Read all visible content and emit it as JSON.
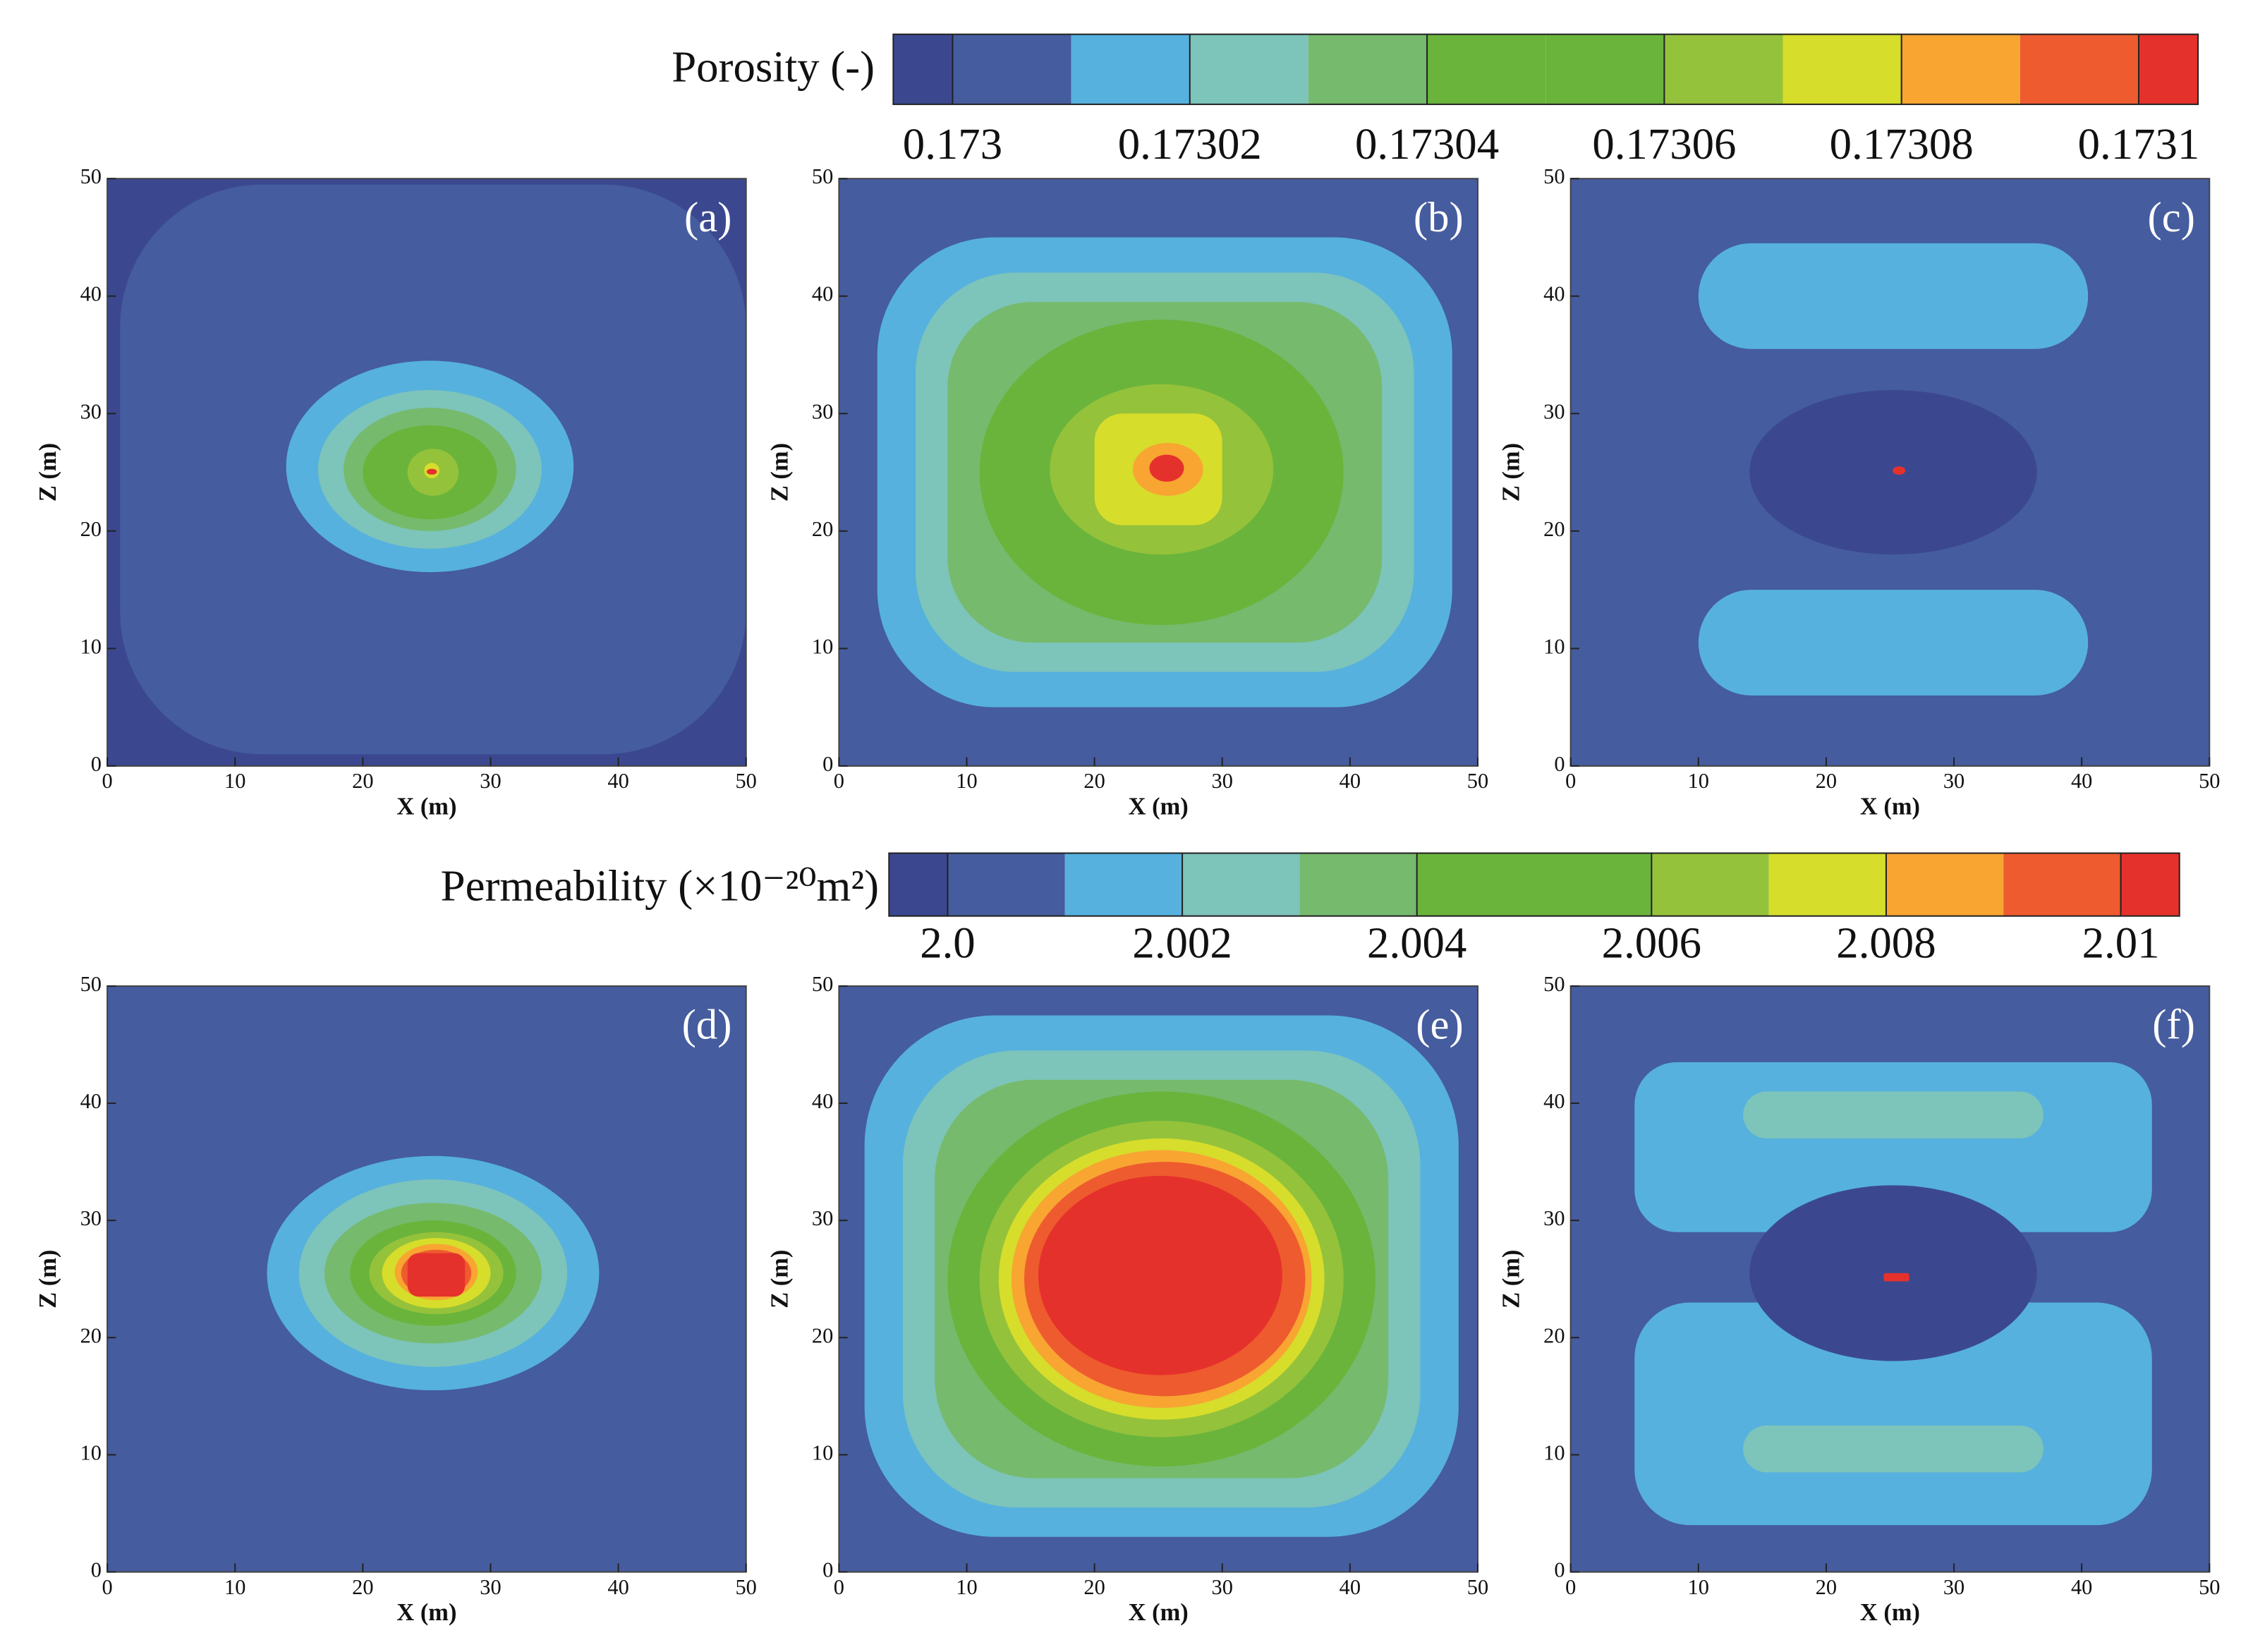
{
  "chart_data": [
    {
      "type": "contour",
      "title": "Porosity (-)",
      "lim": [
        0.172995,
        0.173105
      ],
      "levels": [
        0.173,
        0.17301,
        0.17302,
        0.17303,
        0.17304,
        0.17305,
        0.17306,
        0.17307,
        0.17308,
        0.17309,
        0.1731
      ],
      "colors": [
        "#3b4890",
        "#455c9e",
        "#56b1de",
        "#7dc4ba",
        "#76ba6d",
        "#6ab43c",
        "#6ab43c",
        "#95c23b",
        "#d6dd2b",
        "#f8a532",
        "#ee5b2e",
        "#e5312c"
      ],
      "ticks": [
        0.173,
        0.17302,
        0.17304,
        0.17306,
        0.17308,
        0.1731
      ],
      "panels": [
        {
          "label": "(a)",
          "xlabel": "X (m)",
          "ylabel": "Z (m)",
          "xlim": [
            0,
            50
          ],
          "ylim": [
            0,
            50
          ],
          "xticks": [
            0,
            10,
            20,
            30,
            40,
            50
          ],
          "yticks": [
            0,
            10,
            20,
            30,
            40,
            50
          ],
          "background": 0.172997,
          "regions": [
            {
              "value": 0.173005,
              "shape": "rounded",
              "x": [
                1,
                50
              ],
              "z": [
                1,
                49.5
              ]
            },
            {
              "value": 0.173015,
              "shape": "ellipse",
              "x": [
                14,
                36.5
              ],
              "z": [
                16.5,
                34.5
              ]
            },
            {
              "value": 0.173025,
              "shape": "ellipse",
              "x": [
                16.5,
                34
              ],
              "z": [
                18.5,
                32
              ]
            },
            {
              "value": 0.173035,
              "shape": "ellipse",
              "x": [
                18.5,
                32
              ],
              "z": [
                20,
                30.5
              ]
            },
            {
              "value": 0.173045,
              "shape": "ellipse",
              "x": [
                20,
                30.5
              ],
              "z": [
                21,
                29
              ]
            },
            {
              "value": 0.173065,
              "shape": "ellipse",
              "x": [
                23.5,
                27.5
              ],
              "z": [
                23,
                27
              ]
            },
            {
              "value": 0.173075,
              "shape": "ellipse",
              "x": [
                24.8,
                26
              ],
              "z": [
                24.5,
                25.8
              ]
            },
            {
              "value": 0.173102,
              "shape": "ellipse",
              "x": [
                25,
                25.8
              ],
              "z": [
                24.8,
                25.3
              ]
            }
          ]
        },
        {
          "label": "(b)",
          "xlabel": "X (m)",
          "ylabel": "Z (m)",
          "xlim": [
            0,
            50
          ],
          "ylim": [
            0,
            50
          ],
          "xticks": [
            0,
            10,
            20,
            30,
            40,
            50
          ],
          "yticks": [
            0,
            10,
            20,
            30,
            40,
            50
          ],
          "background": 0.173005,
          "regions": [
            {
              "value": 0.173015,
              "shape": "rounded",
              "x": [
                3,
                48
              ],
              "z": [
                5,
                45
              ]
            },
            {
              "value": 0.173025,
              "shape": "rounded",
              "x": [
                6,
                45
              ],
              "z": [
                8,
                42
              ]
            },
            {
              "value": 0.173035,
              "shape": "rounded",
              "x": [
                8.5,
                42.5
              ],
              "z": [
                10.5,
                39.5
              ]
            },
            {
              "value": 0.173045,
              "shape": "ellipse",
              "x": [
                11,
                39.5
              ],
              "z": [
                12,
                38
              ]
            },
            {
              "value": 0.173065,
              "shape": "ellipse",
              "x": [
                16.5,
                34
              ],
              "z": [
                18,
                32.5
              ]
            },
            {
              "value": 0.173075,
              "shape": "rounded",
              "x": [
                20,
                30
              ],
              "z": [
                20.5,
                30
              ]
            },
            {
              "value": 0.173085,
              "shape": "ellipse",
              "x": [
                23,
                28.5
              ],
              "z": [
                23,
                27.5
              ]
            },
            {
              "value": 0.173102,
              "shape": "ellipse",
              "x": [
                24.3,
                27
              ],
              "z": [
                24.2,
                26.5
              ]
            }
          ]
        },
        {
          "label": "(c)",
          "xlabel": "X (m)",
          "ylabel": "Z (m)",
          "xlim": [
            0,
            50
          ],
          "ylim": [
            0,
            50
          ],
          "xticks": [
            0,
            10,
            20,
            30,
            40,
            50
          ],
          "yticks": [
            0,
            10,
            20,
            30,
            40,
            50
          ],
          "background": 0.173005,
          "regions": [
            {
              "value": 0.173015,
              "shape": "band",
              "x": [
                10,
                40.5
              ],
              "z": [
                35.5,
                44.5
              ]
            },
            {
              "value": 0.173015,
              "shape": "band",
              "x": [
                10,
                40.5
              ],
              "z": [
                6,
                15
              ]
            },
            {
              "value": 0.172997,
              "shape": "ellipse",
              "x": [
                14,
                36.5
              ],
              "z": [
                18,
                32
              ]
            },
            {
              "value": 0.173102,
              "shape": "ellipse",
              "x": [
                25.2,
                26.2
              ],
              "z": [
                24.8,
                25.5
              ]
            }
          ]
        }
      ]
    },
    {
      "type": "contour",
      "title": "Permeability (×10⁻²⁰m²)",
      "lim": [
        1.9995,
        2.0105
      ],
      "levels": [
        2.0,
        2.001,
        2.002,
        2.003,
        2.004,
        2.005,
        2.006,
        2.007,
        2.008,
        2.009,
        2.01
      ],
      "colors": [
        "#3b4890",
        "#455c9e",
        "#56b1de",
        "#7dc4ba",
        "#76ba6d",
        "#6ab43c",
        "#6ab43c",
        "#95c23b",
        "#d6dd2b",
        "#f8a532",
        "#ee5b2e",
        "#e5312c"
      ],
      "ticks": [
        {
          "value": 2,
          "label": "2.0"
        },
        2.002,
        2.004,
        2.006,
        2.008,
        2.01
      ],
      "panels": [
        {
          "label": "(d)",
          "xlabel": "X (m)",
          "ylabel": "Z (m)",
          "xlim": [
            0,
            50
          ],
          "ylim": [
            0,
            50
          ],
          "xticks": [
            0,
            10,
            20,
            30,
            40,
            50
          ],
          "yticks": [
            0,
            10,
            20,
            30,
            40,
            50
          ],
          "background": 2.0005,
          "regions": [
            {
              "value": 2.0015,
              "shape": "ellipse",
              "x": [
                12.5,
                38.5
              ],
              "z": [
                15.5,
                35.5
              ]
            },
            {
              "value": 2.0025,
              "shape": "ellipse",
              "x": [
                15,
                36
              ],
              "z": [
                17.5,
                33.5
              ]
            },
            {
              "value": 2.0035,
              "shape": "ellipse",
              "x": [
                17,
                34
              ],
              "z": [
                19.5,
                31.5
              ]
            },
            {
              "value": 2.0045,
              "shape": "ellipse",
              "x": [
                19,
                32
              ],
              "z": [
                21,
                30
              ]
            },
            {
              "value": 2.0065,
              "shape": "ellipse",
              "x": [
                20.5,
                31
              ],
              "z": [
                22,
                29
              ]
            },
            {
              "value": 2.0075,
              "shape": "ellipse",
              "x": [
                21.5,
                30
              ],
              "z": [
                22.5,
                28.5
              ]
            },
            {
              "value": 2.0085,
              "shape": "ellipse",
              "x": [
                22.5,
                29
              ],
              "z": [
                23.2,
                28
              ]
            },
            {
              "value": 2.0095,
              "shape": "ellipse",
              "x": [
                23,
                28.5
              ],
              "z": [
                23.5,
                27.5
              ]
            },
            {
              "value": 2.0102,
              "shape": "rounded",
              "x": [
                23.5,
                28
              ],
              "z": [
                23.5,
                27.2
              ]
            }
          ]
        },
        {
          "label": "(e)",
          "xlabel": "X (m)",
          "ylabel": "Z (m)",
          "xlim": [
            0,
            50
          ],
          "ylim": [
            0,
            50
          ],
          "xticks": [
            0,
            10,
            20,
            30,
            40,
            50
          ],
          "yticks": [
            0,
            10,
            20,
            30,
            40,
            50
          ],
          "background": 2.0005,
          "regions": [
            {
              "value": 2.0015,
              "shape": "rounded",
              "x": [
                2,
                48.5
              ],
              "z": [
                3,
                47.5
              ]
            },
            {
              "value": 2.0025,
              "shape": "rounded",
              "x": [
                5,
                45.5
              ],
              "z": [
                5.5,
                44.5
              ]
            },
            {
              "value": 2.0035,
              "shape": "rounded",
              "x": [
                7.5,
                43
              ],
              "z": [
                8,
                42
              ]
            },
            {
              "value": 2.0045,
              "shape": "ellipse",
              "x": [
                8.5,
                42
              ],
              "z": [
                9,
                41
              ]
            },
            {
              "value": 2.0065,
              "shape": "ellipse",
              "x": [
                11,
                39.5
              ],
              "z": [
                11.5,
                38.5
              ]
            },
            {
              "value": 2.0075,
              "shape": "ellipse",
              "x": [
                12.5,
                38
              ],
              "z": [
                13,
                37
              ]
            },
            {
              "value": 2.0085,
              "shape": "ellipse",
              "x": [
                13.5,
                37
              ],
              "z": [
                14,
                36
              ]
            },
            {
              "value": 2.0095,
              "shape": "ellipse",
              "x": [
                14.5,
                36.5
              ],
              "z": [
                15,
                35
              ]
            },
            {
              "value": 2.0102,
              "shape": "ellipse",
              "x": [
                15.6,
                34.7
              ],
              "z": [
                16.8,
                33.8
              ]
            }
          ]
        },
        {
          "label": "(f)",
          "xlabel": "X (m)",
          "ylabel": "Z (m)",
          "xlim": [
            0,
            50
          ],
          "ylim": [
            0,
            50
          ],
          "xticks": [
            0,
            10,
            20,
            30,
            40,
            50
          ],
          "yticks": [
            0,
            10,
            20,
            30,
            40,
            50
          ],
          "background": 2.0005,
          "regions": [
            {
              "value": 2.0015,
              "shape": "rounded",
              "x": [
                5,
                45.5
              ],
              "z": [
                29,
                43.5
              ]
            },
            {
              "value": 2.0015,
              "shape": "rounded",
              "x": [
                5,
                45.5
              ],
              "z": [
                4,
                23
              ]
            },
            {
              "value": 2.0025,
              "shape": "band",
              "x": [
                13.5,
                37
              ],
              "z": [
                37,
                41
              ]
            },
            {
              "value": 2.0025,
              "shape": "band",
              "x": [
                13.5,
                37
              ],
              "z": [
                8.5,
                12.5
              ]
            },
            {
              "value": 1.9998,
              "shape": "ellipse",
              "x": [
                14,
                36.5
              ],
              "z": [
                18,
                33
              ]
            },
            {
              "value": 2.0102,
              "shape": "rounded",
              "x": [
                24.5,
                26.5
              ],
              "z": [
                24.8,
                25.5
              ]
            }
          ]
        }
      ]
    }
  ]
}
